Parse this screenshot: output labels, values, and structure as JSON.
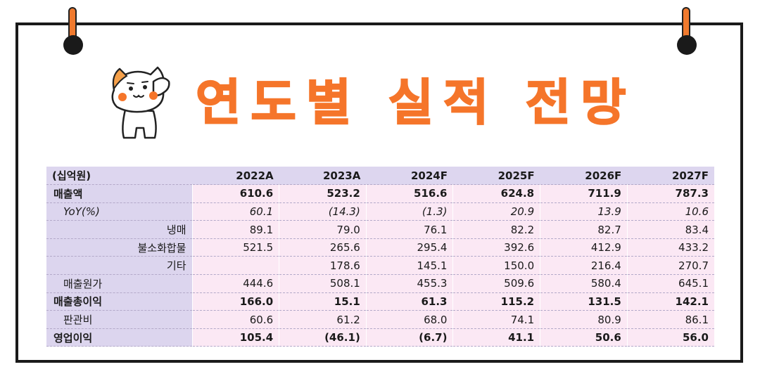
{
  "title": "연도별 실적 전망",
  "icons": {
    "mascot": "saluting-cat-mascot",
    "pin": "binder-clip-icon"
  },
  "colors": {
    "accent": "#f5752a",
    "label_bg": "#dcd5ee",
    "cell_bg": "#fbe8f4"
  },
  "table": {
    "unit": "(십억원)",
    "columns": [
      "2022A",
      "2023A",
      "2024F",
      "2025F",
      "2026F",
      "2027F"
    ],
    "rows": [
      {
        "label": "매출액",
        "style": "bold",
        "indent": 0,
        "values": [
          "610.6",
          "523.2",
          "516.6",
          "624.8",
          "711.9",
          "787.3"
        ]
      },
      {
        "label": "YoY(%)",
        "style": "italic",
        "indent": 1,
        "values": [
          "60.1",
          "(14.3)",
          "(1.3)",
          "20.9",
          "13.9",
          "10.6"
        ]
      },
      {
        "label": "냉매",
        "style": "normal",
        "indent": "right",
        "values": [
          "89.1",
          "79.0",
          "76.1",
          "82.2",
          "82.7",
          "83.4"
        ]
      },
      {
        "label": "불소화합물",
        "style": "normal",
        "indent": "right",
        "values": [
          "521.5",
          "265.6",
          "295.4",
          "392.6",
          "412.9",
          "433.2"
        ]
      },
      {
        "label": "기타",
        "style": "normal",
        "indent": "right",
        "values": [
          "",
          "178.6",
          "145.1",
          "150.0",
          "216.4",
          "270.7"
        ]
      },
      {
        "label": "매출원가",
        "style": "normal",
        "indent": 1,
        "values": [
          "444.6",
          "508.1",
          "455.3",
          "509.6",
          "580.4",
          "645.1"
        ]
      },
      {
        "label": "매출총이익",
        "style": "bold",
        "indent": 0,
        "values": [
          "166.0",
          "15.1",
          "61.3",
          "115.2",
          "131.5",
          "142.1"
        ]
      },
      {
        "label": "판관비",
        "style": "normal",
        "indent": 1,
        "values": [
          "60.6",
          "61.2",
          "68.0",
          "74.1",
          "80.9",
          "86.1"
        ]
      },
      {
        "label": "영업이익",
        "style": "bold",
        "indent": 0,
        "values": [
          "105.4",
          "(46.1)",
          "(6.7)",
          "41.1",
          "50.6",
          "56.0"
        ]
      }
    ]
  }
}
